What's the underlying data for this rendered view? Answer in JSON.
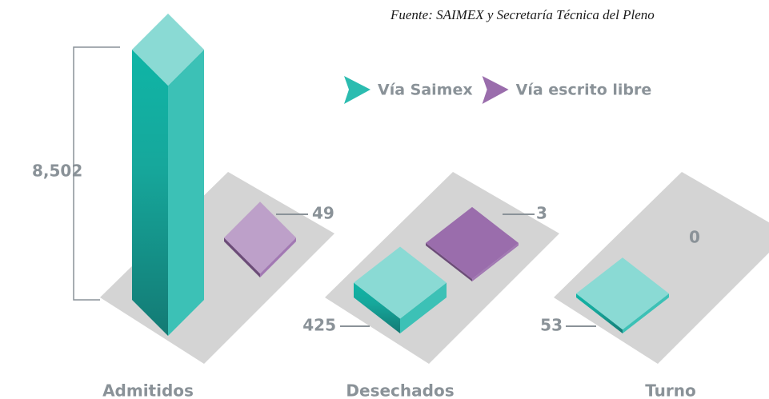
{
  "chart_data": {
    "type": "bar",
    "source": "Fuente: SAIMEX y Secretaría Técnica del Pleno",
    "categories": [
      "Admitidos",
      "Desechados",
      "Turno"
    ],
    "series": [
      {
        "name": "Vía Saimex",
        "color": "#2bbcb0",
        "values": [
          8502,
          425,
          53
        ],
        "value_labels": [
          "8,502",
          "425",
          "53"
        ]
      },
      {
        "name": "Vía escrito libre",
        "color": "#9a6dac",
        "values": [
          49,
          3,
          0
        ]
      }
    ],
    "legend": "top"
  }
}
